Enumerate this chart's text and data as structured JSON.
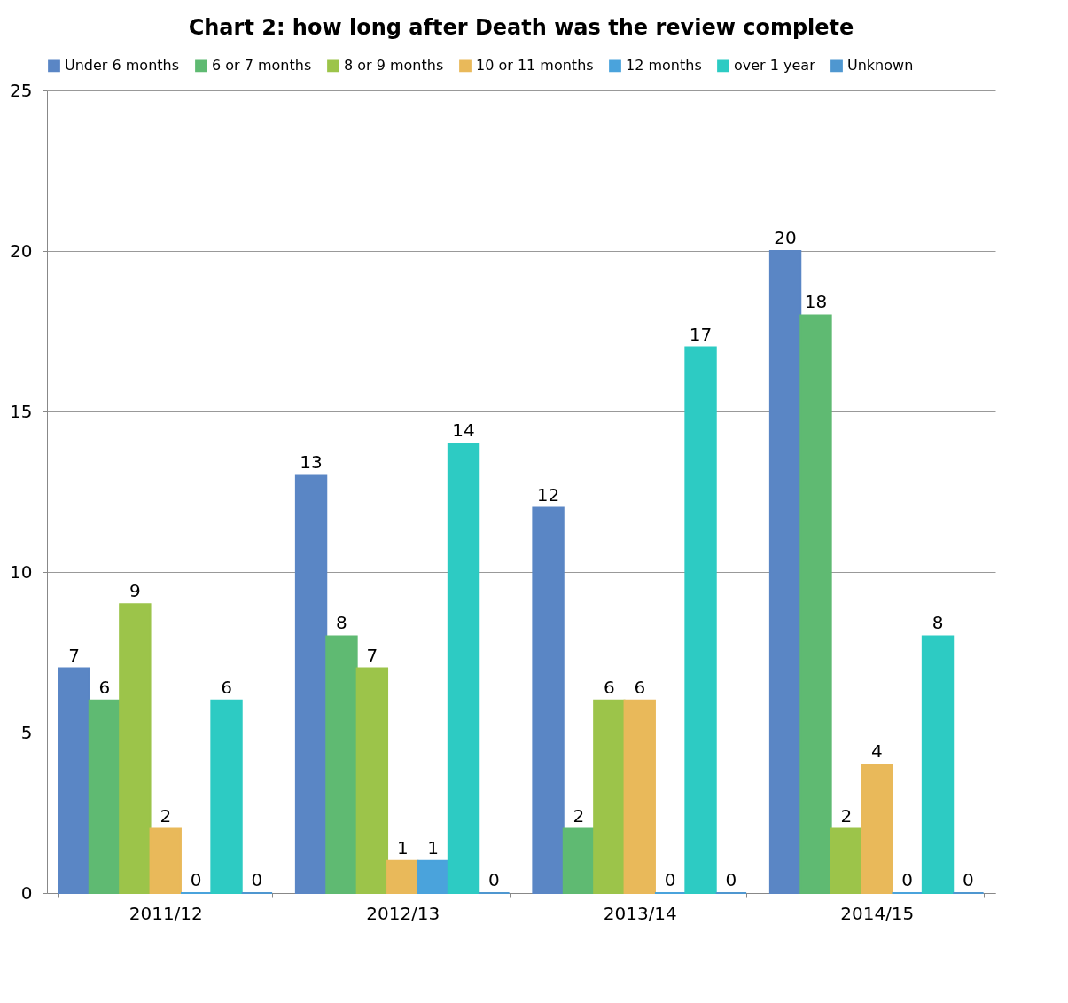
{
  "chart_data": {
    "type": "bar",
    "title": "Chart 2: how long after Death was the review complete",
    "categories": [
      "2011/12",
      "2012/13",
      "2013/14",
      "2014/15"
    ],
    "series": [
      {
        "name": "Under 6 months",
        "color": "#5a86c5",
        "values": [
          7,
          13,
          12,
          20
        ]
      },
      {
        "name": "6 or 7 months",
        "color": "#5fba72",
        "values": [
          6,
          8,
          2,
          18
        ]
      },
      {
        "name": "8 or 9 months",
        "color": "#9cc44a",
        "values": [
          9,
          7,
          6,
          2
        ]
      },
      {
        "name": "10 or 11 months",
        "color": "#e9b95a",
        "values": [
          2,
          1,
          6,
          4
        ]
      },
      {
        "name": "12 months",
        "color": "#4aa3dc",
        "values": [
          0,
          1,
          0,
          0
        ]
      },
      {
        "name": "over 1 year",
        "color": "#2dcbc3",
        "values": [
          6,
          14,
          17,
          8
        ]
      },
      {
        "name": "Unknown",
        "color": "#4f97d0",
        "values": [
          0,
          0,
          0,
          0
        ]
      }
    ],
    "ylim": [
      0,
      25
    ],
    "yticks": [
      0,
      5,
      10,
      15,
      20,
      25
    ],
    "grid": "y",
    "legend": "top",
    "data_labels": true
  }
}
